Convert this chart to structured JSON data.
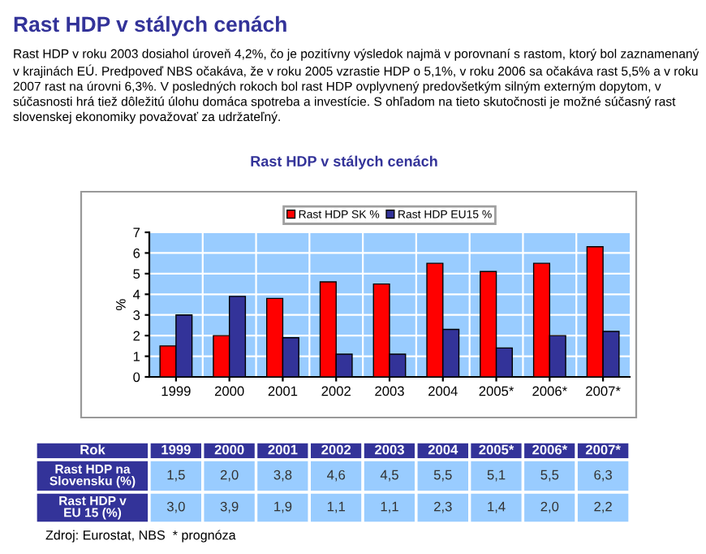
{
  "chart_data": {
    "type": "bar",
    "title": "Rast HDP v stálych cenách",
    "subtitle": "Rast HDP v stálych cenách",
    "ylabel": "%",
    "categories": [
      "1999",
      "2000",
      "2001",
      "2002",
      "2003",
      "2004",
      "2005*",
      "2006*",
      "2007*"
    ],
    "series": [
      {
        "name": "Rast HDP SK %",
        "color": "#ff0000",
        "values": [
          1.5,
          2.0,
          3.8,
          4.6,
          4.5,
          5.5,
          5.1,
          5.5,
          6.3
        ],
        "value_labels": [
          "1,5",
          "2,0",
          "3,8",
          "4,6",
          "4,5",
          "5,5",
          "5,1",
          "5,5",
          "6,3"
        ]
      },
      {
        "name": "Rast HDP EU15 %",
        "color": "#333399",
        "values": [
          3.0,
          3.9,
          1.9,
          1.1,
          1.1,
          2.3,
          1.4,
          2.0,
          2.2
        ],
        "value_labels": [
          "3,0",
          "3,9",
          "1,9",
          "1,1",
          "1,1",
          "2,3",
          "1,4",
          "2,0",
          "2,2"
        ]
      }
    ],
    "ylim": [
      0,
      7
    ],
    "yticks": [
      0,
      1,
      2,
      3,
      4,
      5,
      6,
      7
    ],
    "grid": "y",
    "legend": "top",
    "annotations": [
      "Rast HDP v roku 2003 dosiahol úroveň 4,2%, čo je pozitívny výsledok najmä v porovnaní s rastom, ktorý bol zaznamenaný v krajinách EÚ. Predpoveď NBS očakáva, že v roku 2005 vzrastie HDP o 5,1%, v roku 2006 sa očakáva rast 5,5% a v roku 2007 rast na úrovni 6,3%. V posledných rokoch bol rast HDP ovplyvnený predovšetkým silným externým dopytom, v súčasnosti hrá tiež dôležitú úlohu domáca spotreba a investície. S ohľadom na tieto skutočnosti je možné súčasný rast slovenskej ekonomiky považovať za udržateľný.",
      "Rok",
      "Rast HDP na Slovensku (%)",
      "Rast HDP v EU 15 (%)",
      "Zdroj: Eurostat, NBS  * prognóza"
    ]
  }
}
